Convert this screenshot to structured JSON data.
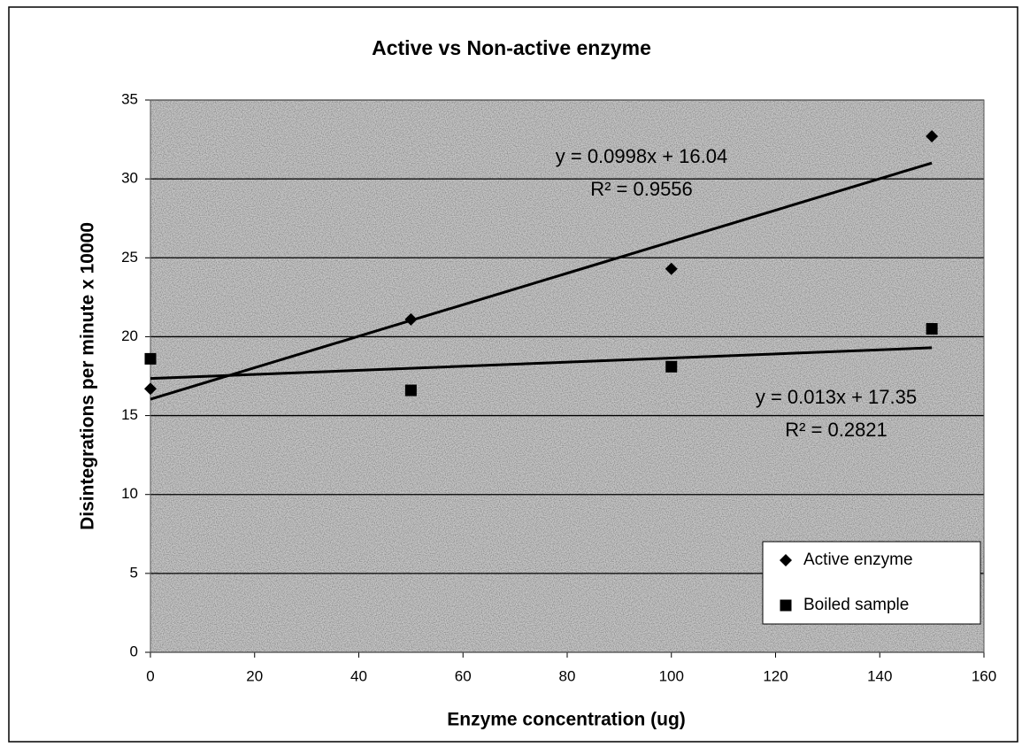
{
  "chart_data": {
    "type": "scatter",
    "title": "Active vs Non-active enzyme",
    "x_label": "Enzyme concentration (ug)",
    "y_label": "Disintegrations per minute x 10000",
    "x": [
      0,
      50,
      100,
      150
    ],
    "series": [
      {
        "name": "Active enzyme",
        "color": "#000000",
        "marker": "diamond",
        "values": [
          16.7,
          21.1,
          24.3,
          32.7
        ],
        "trendline": {
          "slope": 0.0998,
          "intercept": 16.04,
          "equation": "y = 0.0998x + 16.04",
          "r2": "R² = 0.9556"
        }
      },
      {
        "name": "Boiled sample",
        "color": "#000000",
        "marker": "square",
        "values": [
          18.6,
          16.6,
          18.1,
          20.5
        ],
        "trendline": {
          "slope": 0.013,
          "intercept": 17.35,
          "equation": "y = 0.013x + 17.35",
          "r2": "R² = 0.2821"
        }
      }
    ],
    "xlim": [
      0,
      160
    ],
    "xticks": [
      0,
      20,
      40,
      60,
      80,
      100,
      120,
      140,
      160
    ],
    "ylim": [
      0,
      35
    ],
    "yticks": [
      0,
      5,
      10,
      15,
      20,
      25,
      30,
      35
    ],
    "grid": true,
    "legend": "lower right"
  }
}
